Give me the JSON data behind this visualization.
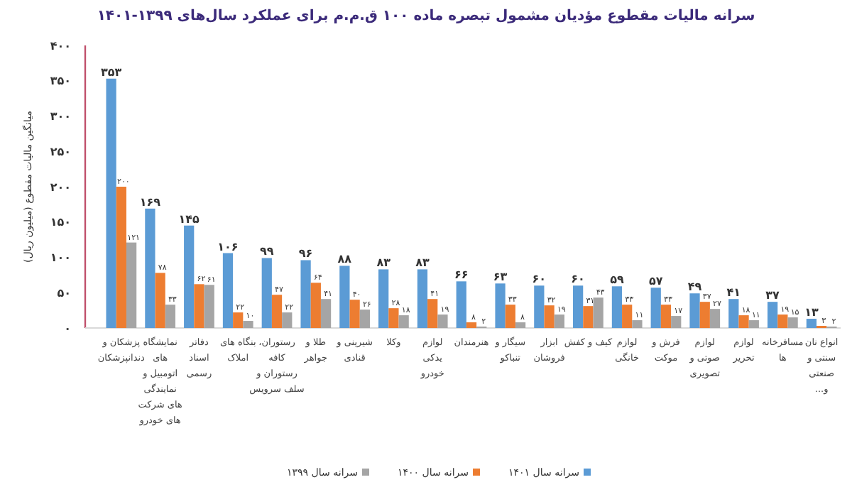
{
  "chart_data": {
    "type": "bar",
    "title": "سرانه مالیات مقطوع مؤدیان مشمول تبصره ماده ۱۰۰ ق.م.م برای عملکرد سال‌های ۱۳۹۹-۱۴۰۱",
    "ylabel": "میانگین مالیات مقطوع (میلیون ریال)",
    "categories": [
      "پزشکان و دندانپزشکان",
      "نمایشگاه های اتومبیل و نمایندگی های شرکت های خودرو",
      "دفاتر اسناد رسمی",
      "بنگاه های املاک",
      "رستوران، کافه رستوران و سلف سرویس",
      "طلا و جواهر",
      "شیرینی و قنادی",
      "وکلا",
      "لوازم یدکی خودرو",
      "هنرمندان",
      "سیگار و تنباکو",
      "ابزار فروشان",
      "کیف و کفش",
      "لوازم خانگی",
      "فرش و موکت",
      "لوازم صوتی و تصویری",
      "لوازم تحریر",
      "مسافرخانه ها",
      "انواع نان سنتی و صنعتی و..."
    ],
    "series": [
      {
        "name": "سرانه سال ۱۴۰۱",
        "color": "#5b9bd5",
        "values": [
          353,
          169,
          145,
          106,
          99,
          96,
          88,
          83,
          83,
          66,
          63,
          60,
          60,
          59,
          57,
          49,
          41,
          37,
          13
        ],
        "value_labels": [
          "۳۵۳",
          "۱۶۹",
          "۱۴۵",
          "۱۰۶",
          "۹۹",
          "۹۶",
          "۸۸",
          "۸۳",
          "۸۳",
          "۶۶",
          "۶۳",
          "۶۰",
          "۶۰",
          "۵۹",
          "۵۷",
          "۴۹",
          "۴۱",
          "۳۷",
          "۱۳"
        ]
      },
      {
        "name": "سرانه سال ۱۴۰۰",
        "color": "#ed7d31",
        "values": [
          200,
          78,
          62,
          22,
          47,
          64,
          40,
          28,
          41,
          8,
          33,
          32,
          31,
          33,
          33,
          37,
          18,
          19,
          3
        ],
        "value_labels": [
          "۲۰۰",
          "۷۸",
          "۶۲",
          "۲۲",
          "۴۷",
          "۶۴",
          "۴۰",
          "۲۸",
          "۴۱",
          "۸",
          "۳۳",
          "۳۲",
          "۳۱",
          "۳۳",
          "۳۳",
          "۳۷",
          "۱۸",
          "۱۹",
          "۳"
        ]
      },
      {
        "name": "سرانه سال ۱۳۹۹",
        "color": "#a5a5a5",
        "values": [
          121,
          33,
          61,
          10,
          22,
          41,
          26,
          18,
          19,
          2,
          8,
          19,
          43,
          11,
          17,
          27,
          11,
          15,
          2
        ],
        "value_labels": [
          "۱۲۱",
          "۳۳",
          "۶۱",
          "۱۰",
          "۲۲",
          "۴۱",
          "۲۶",
          "۱۸",
          "۱۹",
          "۲",
          "۸",
          "۱۹",
          "۴۳",
          "۱۱",
          "۱۷",
          "۲۷",
          "۱۱",
          "۱۵",
          "۲"
        ]
      }
    ],
    "ylim": [
      0,
      400
    ],
    "yticks": [
      {
        "value": 0,
        "label": "۰"
      },
      {
        "value": 50,
        "label": "۵۰"
      },
      {
        "value": 100,
        "label": "۱۰۰"
      },
      {
        "value": 150,
        "label": "۱۵۰"
      },
      {
        "value": 200,
        "label": "۲۰۰"
      },
      {
        "value": 250,
        "label": "۲۵۰"
      },
      {
        "value": 300,
        "label": "۳۰۰"
      },
      {
        "value": 350,
        "label": "۳۵۰"
      },
      {
        "value": 400,
        "label": "۴۰۰"
      }
    ],
    "grid": false,
    "legend": "bottom"
  }
}
